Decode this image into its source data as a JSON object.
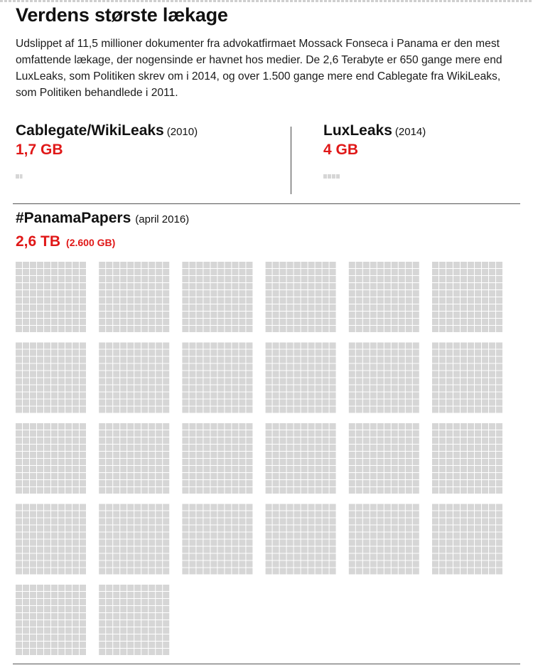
{
  "title": "Verdens største lækage",
  "intro": "Udslippet af 11,5 millioner dokumenter fra advokatfirmaet Mossack Fonseca i Panama er den mest omfattende lækage, der nogensinde er havnet hos medier. De 2,6 Terabyte er 650 gange mere end LuxLeaks, som Politiken skrev om i 2014, og over 1.500 gange mere end Cablegate fra WikiLeaks, som Politiken behandlede i 2011.",
  "colors": {
    "accent": "#e01818",
    "cell": "#d6d6d6",
    "divider": "#555555"
  },
  "chart_data": {
    "type": "unit-chart",
    "unit": "1 GB per square",
    "leaks": [
      {
        "name": "Cablegate/WikiLeaks",
        "year": "(2010)",
        "size_label": "1,7 GB",
        "value_gb": 1.7
      },
      {
        "name": "LuxLeaks",
        "year": "(2014)",
        "size_label": "4 GB",
        "value_gb": 4
      },
      {
        "name": "#PanamaPapers",
        "year": "(april 2016)",
        "size_label": "2,6 TB",
        "size_label_gb": "(2.600 GB)",
        "value_gb": 2600
      }
    ]
  }
}
